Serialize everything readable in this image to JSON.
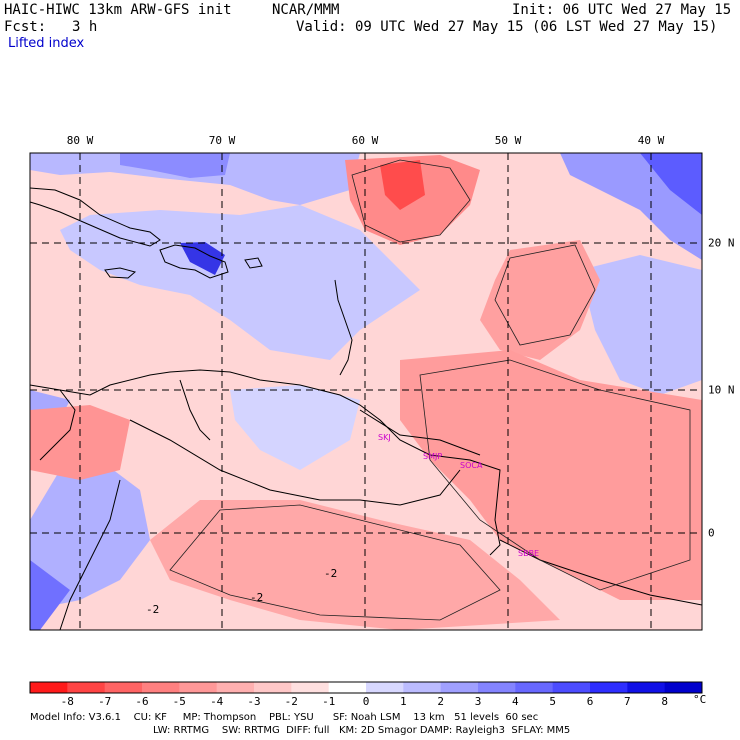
{
  "header": {
    "model_title": "HAIC-HIWC 13km ARW-GFS init",
    "org": "NCAR/MMM",
    "init": "Init: 06 UTC Wed 27 May 15",
    "fcst_label": "Fcst:",
    "fcst_value": "3 h",
    "valid": "Valid: 09 UTC Wed 27 May 15 (06 LST Wed 27 May 15)",
    "field": "Lifted index"
  },
  "map": {
    "lon_labels": [
      "80 W",
      "70 W",
      "60 W",
      "50 W",
      "40 W"
    ],
    "lat_labels": [
      "20 N",
      "10 N",
      "0"
    ],
    "contour_label": "-2",
    "city_labels": [
      "SKJ",
      "SMJP",
      "SOCA",
      "SBBE"
    ]
  },
  "colorbar": {
    "labels": [
      "-8",
      "-7",
      "-6",
      "-5",
      "-4",
      "-3",
      "-2",
      "-1",
      "0",
      "1",
      "2",
      "3",
      "4",
      "5",
      "6",
      "7",
      "8"
    ],
    "unit": "°C",
    "colors": [
      "#ff1a1a",
      "#ff4444",
      "#ff6464",
      "#ff8080",
      "#ff9898",
      "#ffb0b0",
      "#ffc8c8",
      "#ffe0e0",
      "#ffffff",
      "#d8d8ff",
      "#bcbcff",
      "#a0a0ff",
      "#8484ff",
      "#6868ff",
      "#4c4cff",
      "#2e2eff",
      "#1010e6"
    ]
  },
  "footer": {
    "line1": "Model Info: V3.6.1    CU: KF     MP: Thompson    PBL: YSU      SF: Noah LSM    13 km   51 levels  60 sec",
    "line2": "LW: RRTMG    SW: RRTMG  DIFF: full   KM: 2D Smagor DAMP: Rayleigh3  SFLAY: MM5"
  }
}
